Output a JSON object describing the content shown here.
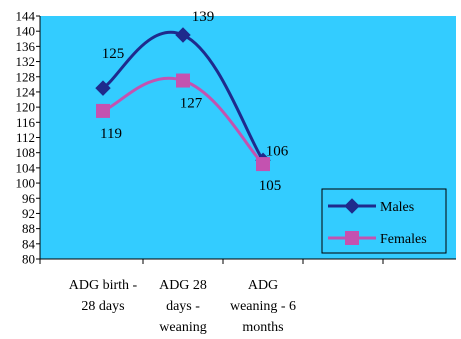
{
  "chart_data": {
    "type": "line",
    "title": "",
    "xlabel": "",
    "ylabel": "",
    "categories": [
      [
        "ADG birth -",
        "28 days"
      ],
      [
        "ADG 28",
        "days -",
        "weaning"
      ],
      [
        "ADG",
        "weaning - 6",
        "months"
      ]
    ],
    "ylim": [
      80,
      144
    ],
    "ytick_step": 4,
    "grid": false,
    "legend_placement": "bottom-right",
    "plot_background": "#33CCFF",
    "series": [
      {
        "name": "Males",
        "values": [
          125,
          139,
          106
        ],
        "labels": [
          "125",
          "139",
          "106"
        ],
        "color": "#1F2A8C",
        "marker": "diamond"
      },
      {
        "name": "Females",
        "values": [
          119,
          127,
          105
        ],
        "labels": [
          "119",
          "127",
          "105"
        ],
        "color": "#C452B0",
        "marker": "square"
      }
    ]
  }
}
